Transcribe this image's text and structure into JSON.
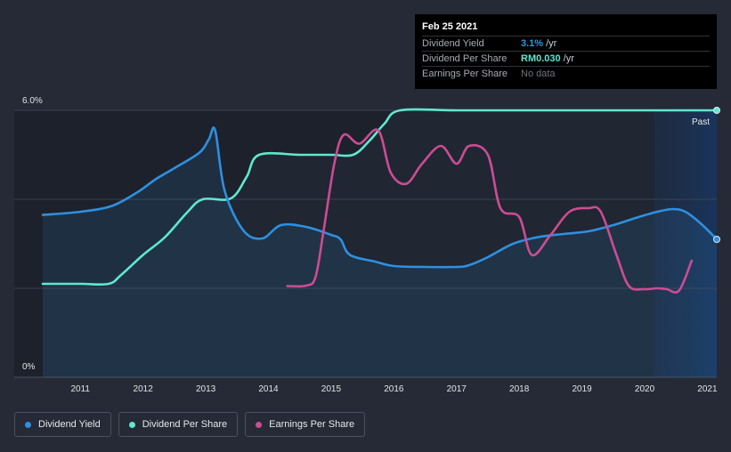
{
  "tooltip": {
    "date": "Feb 25 2021",
    "rows": [
      {
        "name": "Dividend Yield",
        "value": "3.1%",
        "unit": "/yr"
      },
      {
        "name": "Dividend Per Share",
        "value": "RM0.030",
        "unit": "/yr"
      },
      {
        "name": "Earnings Per Share",
        "value": "No data"
      }
    ]
  },
  "legend": {
    "items": [
      {
        "label": "Dividend Yield",
        "color": "#2e90e0"
      },
      {
        "label": "Dividend Per Share",
        "color": "#5ee8cf"
      },
      {
        "label": "Earnings Per Share",
        "color": "#cc4c95"
      }
    ]
  },
  "chart_data": {
    "type": "line",
    "title": "",
    "xlabel": "",
    "ylabel": "",
    "xlim": [
      2010.4,
      2021.15
    ],
    "ylim": [
      0,
      6
    ],
    "y_tick_labels": [
      "6.0%",
      "0%"
    ],
    "x_ticks": [
      2011,
      2012,
      2013,
      2014,
      2015,
      2016,
      2017,
      2018,
      2019,
      2020,
      2021
    ],
    "x_tick_labels": [
      "2011",
      "2012",
      "2013",
      "2014",
      "2015",
      "2016",
      "2017",
      "2018",
      "2019",
      "2020",
      "2021"
    ],
    "forecast_start": 2020.15,
    "past_label": "Past",
    "series": [
      {
        "name": "Dividend Yield",
        "color": "#2e90e0",
        "points": [
          [
            2010.4,
            3.65
          ],
          [
            2011.0,
            3.72
          ],
          [
            2011.5,
            3.85
          ],
          [
            2011.9,
            4.15
          ],
          [
            2012.2,
            4.45
          ],
          [
            2012.5,
            4.7
          ],
          [
            2012.9,
            5.05
          ],
          [
            2013.05,
            5.35
          ],
          [
            2013.15,
            5.55
          ],
          [
            2013.3,
            4.2
          ],
          [
            2013.6,
            3.3
          ],
          [
            2013.9,
            3.12
          ],
          [
            2014.2,
            3.42
          ],
          [
            2014.6,
            3.38
          ],
          [
            2015.0,
            3.2
          ],
          [
            2015.15,
            3.1
          ],
          [
            2015.3,
            2.75
          ],
          [
            2015.7,
            2.6
          ],
          [
            2016.0,
            2.5
          ],
          [
            2016.5,
            2.48
          ],
          [
            2017.0,
            2.48
          ],
          [
            2017.2,
            2.52
          ],
          [
            2017.5,
            2.7
          ],
          [
            2017.9,
            3.0
          ],
          [
            2018.3,
            3.15
          ],
          [
            2018.7,
            3.22
          ],
          [
            2019.1,
            3.28
          ],
          [
            2019.5,
            3.42
          ],
          [
            2019.9,
            3.6
          ],
          [
            2020.2,
            3.72
          ],
          [
            2020.45,
            3.78
          ],
          [
            2020.65,
            3.72
          ],
          [
            2020.9,
            3.45
          ],
          [
            2021.15,
            3.1
          ]
        ]
      },
      {
        "name": "Dividend Per Share",
        "color": "#5ee8cf",
        "points": [
          [
            2010.4,
            2.1
          ],
          [
            2011.0,
            2.1
          ],
          [
            2011.45,
            2.1
          ],
          [
            2011.65,
            2.3
          ],
          [
            2012.0,
            2.75
          ],
          [
            2012.35,
            3.15
          ],
          [
            2012.7,
            3.7
          ],
          [
            2012.95,
            4.0
          ],
          [
            2013.4,
            4.02
          ],
          [
            2013.65,
            4.5
          ],
          [
            2013.85,
            5.0
          ],
          [
            2014.5,
            5.0
          ],
          [
            2015.0,
            5.0
          ],
          [
            2015.35,
            5.0
          ],
          [
            2015.6,
            5.3
          ],
          [
            2015.85,
            5.7
          ],
          [
            2016.1,
            6.0
          ],
          [
            2017.0,
            6.0
          ],
          [
            2018.0,
            6.0
          ],
          [
            2019.0,
            6.0
          ],
          [
            2020.0,
            6.0
          ],
          [
            2021.15,
            6.0
          ]
        ]
      },
      {
        "name": "Earnings Per Share",
        "color": "#cc4c95",
        "points": [
          [
            2014.3,
            2.05
          ],
          [
            2014.6,
            2.06
          ],
          [
            2014.75,
            2.25
          ],
          [
            2014.88,
            3.3
          ],
          [
            2015.05,
            4.8
          ],
          [
            2015.2,
            5.45
          ],
          [
            2015.45,
            5.25
          ],
          [
            2015.75,
            5.55
          ],
          [
            2015.95,
            4.6
          ],
          [
            2016.2,
            4.35
          ],
          [
            2016.45,
            4.8
          ],
          [
            2016.75,
            5.2
          ],
          [
            2017.0,
            4.8
          ],
          [
            2017.2,
            5.2
          ],
          [
            2017.5,
            5.0
          ],
          [
            2017.7,
            3.8
          ],
          [
            2018.0,
            3.6
          ],
          [
            2018.2,
            2.75
          ],
          [
            2018.5,
            3.2
          ],
          [
            2018.8,
            3.72
          ],
          [
            2019.1,
            3.8
          ],
          [
            2019.3,
            3.72
          ],
          [
            2019.55,
            2.75
          ],
          [
            2019.75,
            2.05
          ],
          [
            2020.0,
            1.98
          ],
          [
            2020.2,
            2.0
          ],
          [
            2020.35,
            1.98
          ],
          [
            2020.55,
            1.95
          ],
          [
            2020.75,
            2.62
          ]
        ]
      }
    ]
  }
}
